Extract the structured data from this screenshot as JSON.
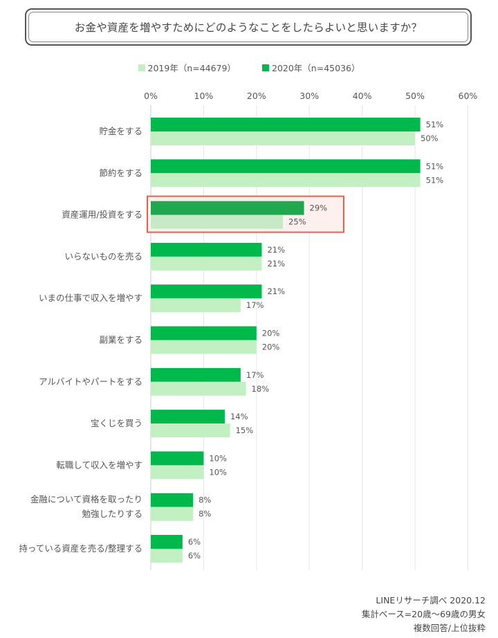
{
  "title": "お金や資産を増やすためにどのようなことをしたらよいと思いますか？",
  "chart_data": {
    "type": "bar",
    "orientation": "horizontal",
    "categories": [
      "貯金をする",
      "節約をする",
      "資産運用/投資をする",
      "いらないものを売る",
      "いまの仕事で収入を増やす",
      "副業をする",
      "アルバイトやパートをする",
      "宝くじを買う",
      "転職して収入を増やす",
      "金融について資格を取ったり勉強したりする",
      "持っている資産を売る/整理する"
    ],
    "category_lines": [
      [
        "貯金をする"
      ],
      [
        "節約をする"
      ],
      [
        "資産運用/投資をする"
      ],
      [
        "いらないものを売る"
      ],
      [
        "いまの仕事で収入を増やす"
      ],
      [
        "副業をする"
      ],
      [
        "アルバイトやパートをする"
      ],
      [
        "宝くじを買う"
      ],
      [
        "転職して収入を増やす"
      ],
      [
        "金融について資格を取ったり",
        "勉強したりする"
      ],
      [
        "持っている資産を売る/整理する"
      ]
    ],
    "series": [
      {
        "name": "2020年（n=45036）",
        "color": "#00b84c",
        "values": [
          51,
          51,
          29,
          21,
          21,
          20,
          17,
          14,
          10,
          8,
          6
        ]
      },
      {
        "name": "2019年（n=44679）",
        "color": "#c3f0c2",
        "values": [
          50,
          51,
          25,
          21,
          17,
          20,
          18,
          15,
          10,
          8,
          6
        ]
      }
    ],
    "xlim": [
      0,
      60
    ],
    "xticks": [
      "0%",
      "10%",
      "20%",
      "30%",
      "40%",
      "50%",
      "60%"
    ],
    "xtick_values": [
      0,
      10,
      20,
      30,
      40,
      50,
      60
    ],
    "value_suffix": "%",
    "grid": true,
    "legend_position": "top-center",
    "highlight_category": "資産運用/投資をする",
    "highlight_color": "#e8604c",
    "highlight_series_colors": [
      "#1fa84e",
      "#c6eac5"
    ]
  },
  "legend": [
    {
      "label": "2019年（n=44679）",
      "color": "#c3f0c2"
    },
    {
      "label": "2020年（n=45036）",
      "color": "#00b84c"
    }
  ],
  "footer": {
    "source": "LINEリサーチ調べ 2020.12",
    "base": "集計ベース=20歳～69歳の男女",
    "note": "複数回答/上位抜粋"
  }
}
